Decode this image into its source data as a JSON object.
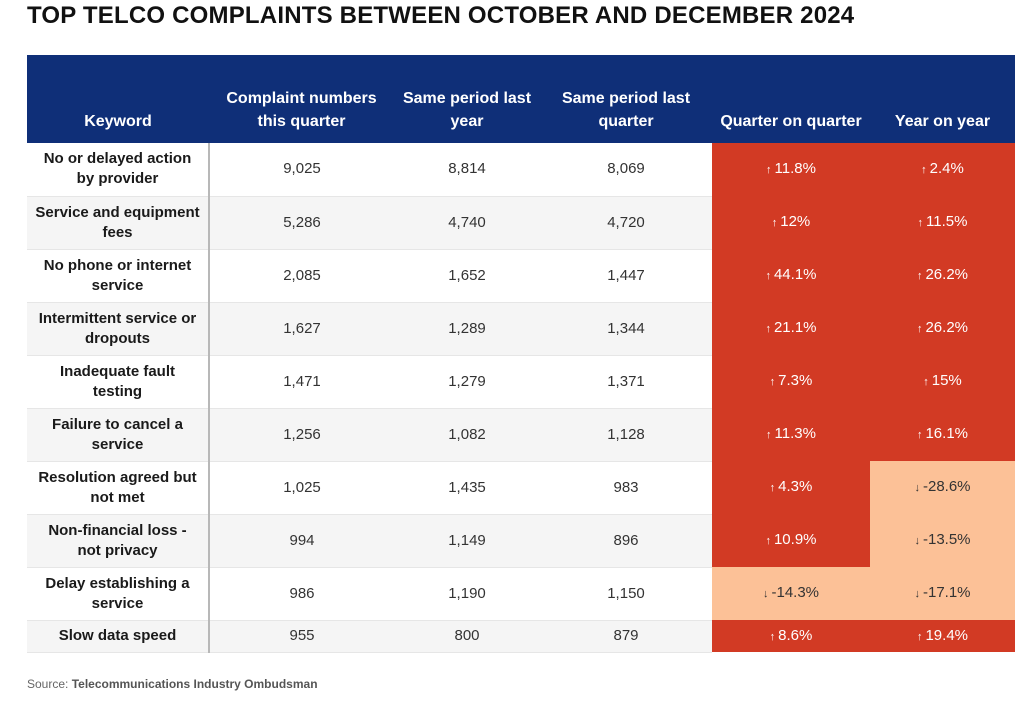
{
  "chart_data": {
    "type": "table",
    "title": "TOP TELCO COMPLAINTS BETWEEN OCTOBER AND DECEMBER 2024",
    "columns": [
      "Keyword",
      "Complaint numbers this quarter",
      "Same period last year",
      "Same period last quarter",
      "Quarter on quarter",
      "Year on year"
    ],
    "rows": [
      {
        "keyword": "No or delayed action by provider",
        "this_quarter": "9,025",
        "last_year": "8,814",
        "last_quarter": "8,069",
        "qoq": {
          "arrow": "↑",
          "value": "11.8%",
          "trend": "up"
        },
        "yoy": {
          "arrow": "↑",
          "value": "2.4%",
          "trend": "up"
        }
      },
      {
        "keyword": "Service and equipment fees",
        "this_quarter": "5,286",
        "last_year": "4,740",
        "last_quarter": "4,720",
        "qoq": {
          "arrow": "↑",
          "value": "12%",
          "trend": "up"
        },
        "yoy": {
          "arrow": "↑",
          "value": "11.5%",
          "trend": "up"
        }
      },
      {
        "keyword": "No phone or internet service",
        "this_quarter": "2,085",
        "last_year": "1,652",
        "last_quarter": "1,447",
        "qoq": {
          "arrow": "↑",
          "value": "44.1%",
          "trend": "up"
        },
        "yoy": {
          "arrow": "↑",
          "value": "26.2%",
          "trend": "up"
        }
      },
      {
        "keyword": "Intermittent service or dropouts",
        "this_quarter": "1,627",
        "last_year": "1,289",
        "last_quarter": "1,344",
        "qoq": {
          "arrow": "↑",
          "value": "21.1%",
          "trend": "up"
        },
        "yoy": {
          "arrow": "↑",
          "value": "26.2%",
          "trend": "up"
        }
      },
      {
        "keyword": "Inadequate fault testing",
        "this_quarter": "1,471",
        "last_year": "1,279",
        "last_quarter": "1,371",
        "qoq": {
          "arrow": "↑",
          "value": "7.3%",
          "trend": "up"
        },
        "yoy": {
          "arrow": "↑",
          "value": "15%",
          "trend": "up"
        }
      },
      {
        "keyword": "Failure to cancel a service",
        "this_quarter": "1,256",
        "last_year": "1,082",
        "last_quarter": "1,128",
        "qoq": {
          "arrow": "↑",
          "value": "11.3%",
          "trend": "up"
        },
        "yoy": {
          "arrow": "↑",
          "value": "16.1%",
          "trend": "up"
        }
      },
      {
        "keyword": "Resolution agreed but not met",
        "this_quarter": "1,025",
        "last_year": "1,435",
        "last_quarter": "983",
        "qoq": {
          "arrow": "↑",
          "value": "4.3%",
          "trend": "up"
        },
        "yoy": {
          "arrow": "↓",
          "value": "-28.6%",
          "trend": "down"
        }
      },
      {
        "keyword": "Non-financial loss - not privacy",
        "this_quarter": "994",
        "last_year": "1,149",
        "last_quarter": "896",
        "qoq": {
          "arrow": "↑",
          "value": "10.9%",
          "trend": "up"
        },
        "yoy": {
          "arrow": "↓",
          "value": "-13.5%",
          "trend": "down"
        }
      },
      {
        "keyword": "Delay establishing a service",
        "this_quarter": "986",
        "last_year": "1,190",
        "last_quarter": "1,150",
        "qoq": {
          "arrow": "↓",
          "value": "-14.3%",
          "trend": "down"
        },
        "yoy": {
          "arrow": "↓",
          "value": "-17.1%",
          "trend": "down"
        }
      },
      {
        "keyword": "Slow data speed",
        "this_quarter": "955",
        "last_year": "800",
        "last_quarter": "879",
        "qoq": {
          "arrow": "↑",
          "value": "8.6%",
          "trend": "up"
        },
        "yoy": {
          "arrow": "↑",
          "value": "19.4%",
          "trend": "up"
        }
      }
    ]
  },
  "source": {
    "label": "Source:",
    "name": "Telecommunications Industry Ombudsman"
  },
  "colors": {
    "header_bg": "#0f2f78",
    "increase": "#d23a24",
    "decrease": "#fcc197"
  }
}
